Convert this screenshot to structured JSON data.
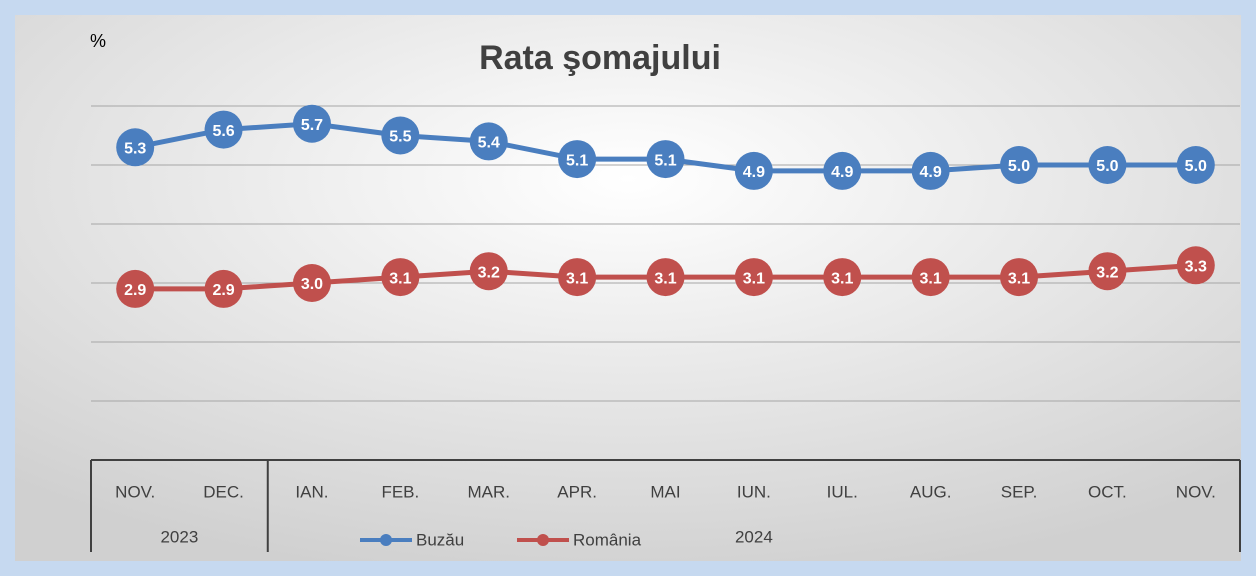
{
  "chart_data": {
    "type": "line",
    "title": "Rata şomajului",
    "y_unit_label": "%",
    "categories": [
      "NOV.",
      "DEC.",
      "IAN.",
      "FEB.",
      "MAR.",
      "APR.",
      "MAI",
      "IUN.",
      "IUL.",
      "AUG.",
      "SEP.",
      "OCT.",
      "NOV."
    ],
    "category_groups": [
      {
        "label": "2023",
        "start": 0,
        "end": 1
      },
      {
        "label": "2024",
        "start": 2,
        "end": 12
      }
    ],
    "series": [
      {
        "name": "Buzău",
        "color": "#4a7ebf",
        "values": [
          5.3,
          5.6,
          5.7,
          5.5,
          5.4,
          5.1,
          5.1,
          4.9,
          4.9,
          4.9,
          5,
          5,
          5
        ],
        "value_labels": [
          "5.3",
          "5.6",
          "5.7",
          "5.5",
          "5.4",
          "5.1",
          "5.1",
          "4.9",
          "4.9",
          "4.9",
          "5.0",
          "5.0",
          "5.0"
        ]
      },
      {
        "name": "România",
        "color": "#c0504d",
        "values": [
          2.9,
          2.9,
          3,
          3.1,
          3.2,
          3.1,
          3.1,
          3.1,
          3.1,
          3.1,
          3.1,
          3.2,
          3.3
        ],
        "value_labels": [
          "2.9",
          "2.9",
          "3.0",
          "3.1",
          "3.2",
          "3.1",
          "3.1",
          "3.1",
          "3.1",
          "3.1",
          "3.1",
          "3.2",
          "3.3"
        ]
      }
    ],
    "ylim": [
      0,
      6
    ],
    "yticks": [
      0,
      1,
      2,
      3,
      4,
      5,
      6
    ],
    "grid": true,
    "legend": "bottom"
  }
}
